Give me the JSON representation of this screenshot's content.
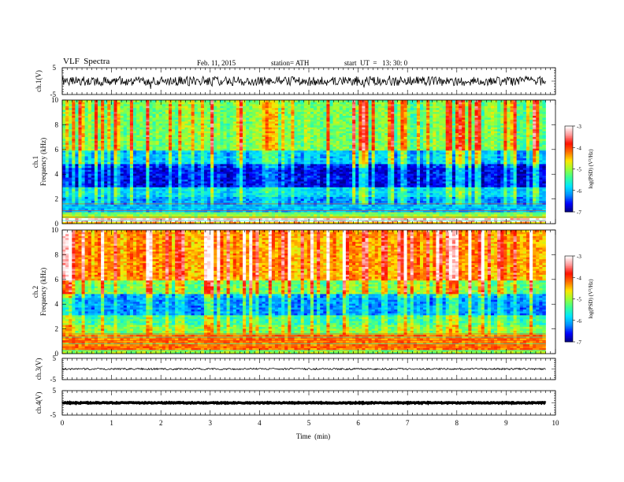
{
  "header": {
    "title": "VLF  Spectra",
    "date": "Feb. 11, 2015",
    "station": "station= ATH",
    "start": "start  UT  =   13: 30: 0"
  },
  "colors": {
    "background": "#ffffff",
    "axes": "#000000",
    "signal_trace": "#000000",
    "colormap": [
      "#00007f",
      "#0000ff",
      "#0090ff",
      "#00e5ff",
      "#35ff9a",
      "#9aff35",
      "#ffe500",
      "#ff7000",
      "#ff1000",
      "#ff9a9a",
      "#ffffff"
    ]
  },
  "chart_data": {
    "type": "heatmap",
    "x_axis": {
      "label": "Time  (min)",
      "range": [
        0,
        10
      ],
      "ticks": [
        "0",
        "1",
        "2",
        "3",
        "4",
        "5",
        "6",
        "7",
        "8",
        "9",
        "10"
      ],
      "data_end": 9.8
    },
    "panels": [
      {
        "name": "ch.1(V)",
        "kind": "waveform",
        "ylim": [
          -5,
          5
        ],
        "yticks": [
          "5",
          "-5"
        ],
        "level": 0.0,
        "noise": 0.35
      },
      {
        "name": "ch.1",
        "kind": "spectrogram",
        "ylabel": "Frequency  (kHz)",
        "ylim": [
          0,
          10
        ],
        "yticks": [
          "0",
          "2",
          "4",
          "6",
          "8",
          "10"
        ],
        "colorbar": {
          "label": "log(PSD) (V²/Hz)",
          "range": [
            -7,
            -3
          ],
          "ticks": [
            "-3",
            "-4",
            "-5",
            "-6",
            "-7"
          ]
        },
        "bands_logpsd": [
          {
            "f": [
              0.0,
              0.2
            ],
            "v": -4.5
          },
          {
            "f": [
              0.2,
              0.5
            ],
            "v": -3.2
          },
          {
            "f": [
              0.5,
              1.0
            ],
            "v": -5.0
          },
          {
            "f": [
              1.0,
              1.6
            ],
            "v": -6.0
          },
          {
            "f": [
              1.6,
              2.2
            ],
            "v": -6.3
          },
          {
            "f": [
              2.2,
              3.0
            ],
            "v": -6.0
          },
          {
            "f": [
              3.0,
              4.8
            ],
            "v": -6.8
          },
          {
            "f": [
              4.8,
              6.0
            ],
            "v": -6.2
          },
          {
            "f": [
              6.0,
              10.0
            ],
            "v": -5.4
          }
        ]
      },
      {
        "name": "ch.2",
        "kind": "spectrogram",
        "ylabel": "Frequency  (kHz)",
        "ylim": [
          0,
          10
        ],
        "yticks": [
          "0",
          "2",
          "4",
          "6",
          "8",
          "10"
        ],
        "colorbar": {
          "label": "log(PSD) (V²/Hz)",
          "range": [
            -7,
            -3
          ],
          "ticks": [
            "-3",
            "-4",
            "-5",
            "-6",
            "-7"
          ]
        },
        "bands_logpsd": [
          {
            "f": [
              0.0,
              0.3
            ],
            "v": -5.0
          },
          {
            "f": [
              0.3,
              1.6
            ],
            "v": -4.2
          },
          {
            "f": [
              1.6,
              2.4
            ],
            "v": -5.3
          },
          {
            "f": [
              2.4,
              3.2
            ],
            "v": -5.6
          },
          {
            "f": [
              3.2,
              4.8
            ],
            "v": -6.3
          },
          {
            "f": [
              4.8,
              6.0
            ],
            "v": -5.4
          },
          {
            "f": [
              6.0,
              10.0
            ],
            "v": -4.6
          }
        ]
      },
      {
        "name": "ch.3(V)",
        "kind": "waveform",
        "ylim": [
          -5,
          5
        ],
        "yticks": [
          "5",
          "-5"
        ],
        "level": 0.0,
        "noise": 0.08
      },
      {
        "name": "ch.4(V)",
        "kind": "waveform",
        "ylim": [
          -5,
          5
        ],
        "yticks": [
          "5",
          "-5"
        ],
        "level": 0.0,
        "noise": 0.04
      }
    ]
  }
}
